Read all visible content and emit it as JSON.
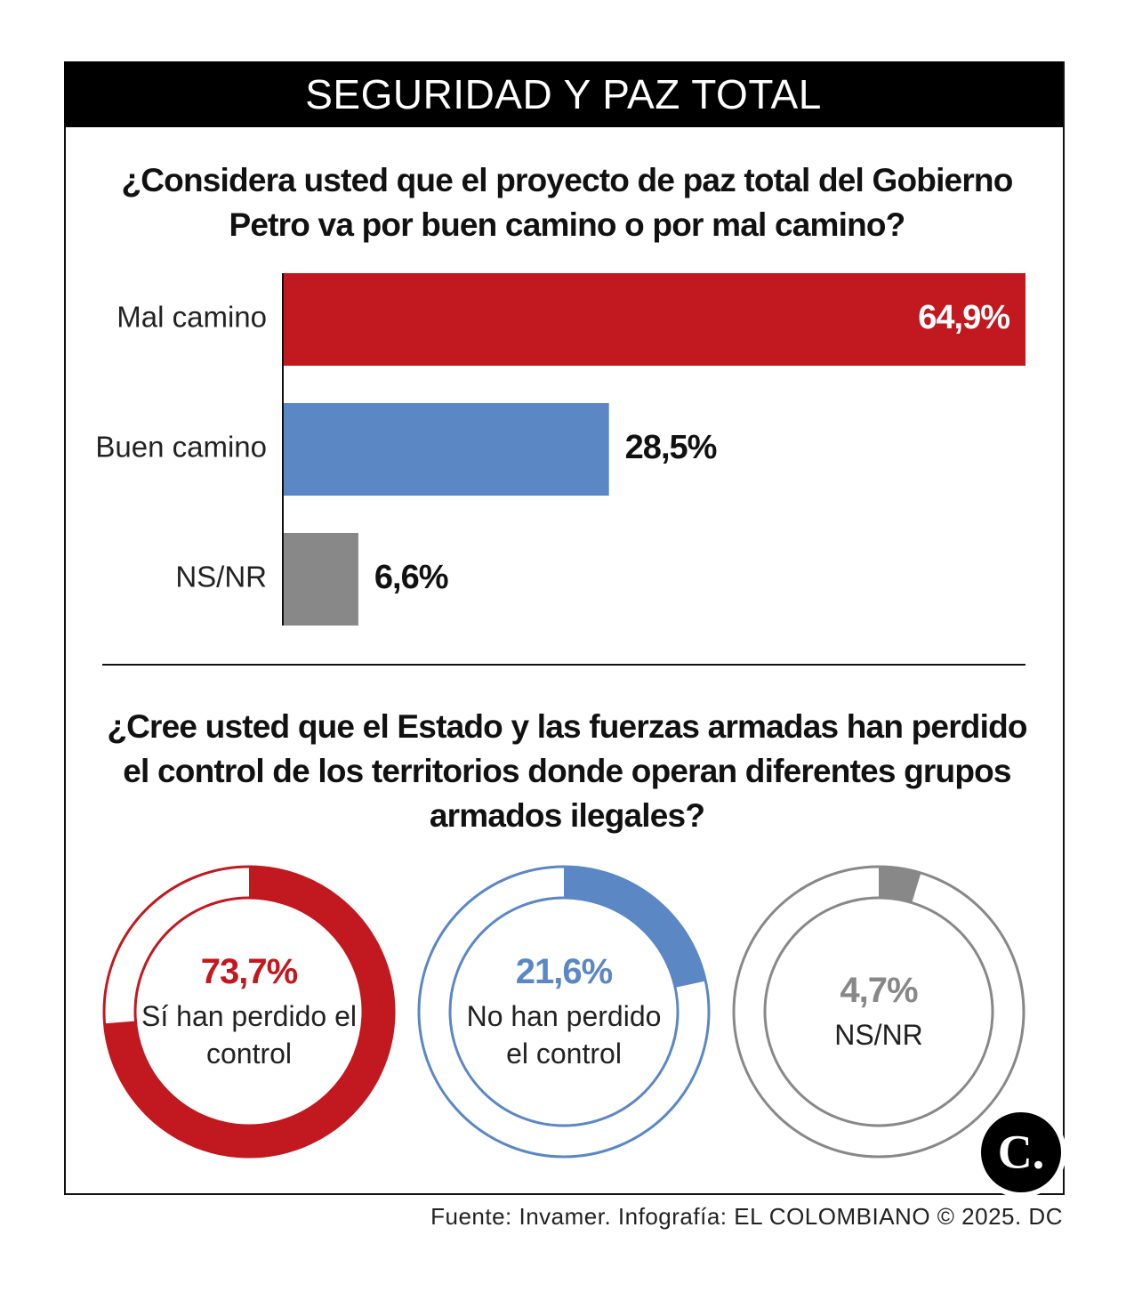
{
  "header": {
    "title": "SEGURIDAD Y PAZ TOTAL"
  },
  "chart_data": [
    {
      "type": "bar",
      "title": "¿Considera usted que el proyecto de paz total del Gobierno Petro va por buen camino o por mal camino?",
      "categories": [
        "Mal camino",
        "Buen camino",
        "NS/NR"
      ],
      "values": [
        64.9,
        28.5,
        6.6
      ],
      "value_labels": [
        "64,9%",
        "28,5%",
        "6,6%"
      ],
      "colors": [
        "#c1191f",
        "#5b87c5",
        "#888888"
      ]
    },
    {
      "type": "donut",
      "title": "¿Cree usted que el Estado y las fuerzas armadas han perdido el control de los territorios donde operan diferentes grupos armados ilegales?",
      "categories": [
        "Sí han perdido el control",
        "No han perdido el control",
        "NS/NR"
      ],
      "values": [
        73.7,
        21.6,
        4.7
      ],
      "value_labels": [
        "73,7%",
        "21,6%",
        "4,7%"
      ],
      "colors": [
        "#c1191f",
        "#5b87c5",
        "#888888"
      ]
    }
  ],
  "logo": "C.",
  "footer": {
    "source": "Fuente: Invamer. Infografía: EL COLOMBIANO © 2025. DC"
  }
}
